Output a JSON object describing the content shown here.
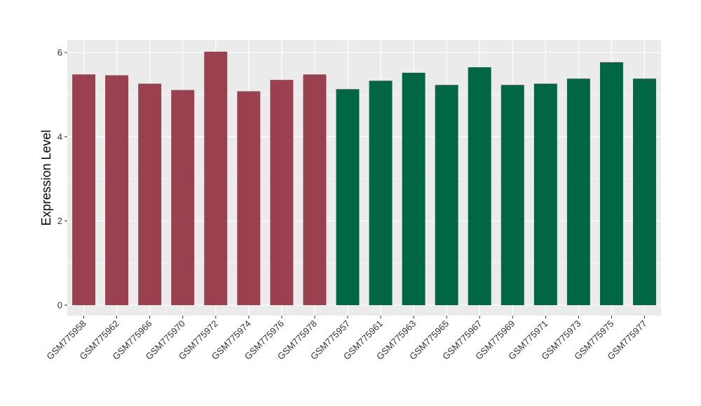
{
  "chart_data": {
    "type": "bar",
    "title": "",
    "xlabel": "",
    "ylabel": "Expression Level",
    "ylim": [
      -0.25,
      6.3
    ],
    "yticks": [
      0,
      2,
      4,
      6
    ],
    "grid": true,
    "legend": "none",
    "categories": [
      "GSM775958",
      "GSM775962",
      "GSM775966",
      "GSM775970",
      "GSM775972",
      "GSM775974",
      "GSM775976",
      "GSM775978",
      "GSM775957",
      "GSM775961",
      "GSM775963",
      "GSM775965",
      "GSM775967",
      "GSM775969",
      "GSM775971",
      "GSM775973",
      "GSM775975",
      "GSM775977"
    ],
    "values": [
      5.48,
      5.46,
      5.26,
      5.11,
      6.02,
      5.08,
      5.35,
      5.48,
      5.13,
      5.33,
      5.52,
      5.23,
      5.65,
      5.23,
      5.26,
      5.38,
      5.77,
      5.38
    ],
    "bar_colors": [
      "#9b404e",
      "#9b404e",
      "#9b404e",
      "#9b404e",
      "#9b404e",
      "#9b404e",
      "#9b404e",
      "#9b404e",
      "#006644",
      "#006644",
      "#006644",
      "#006644",
      "#006644",
      "#006644",
      "#006644",
      "#006644",
      "#006644",
      "#006644"
    ],
    "panel_background": "#ebebeb",
    "grid_color": "#ffffff"
  }
}
